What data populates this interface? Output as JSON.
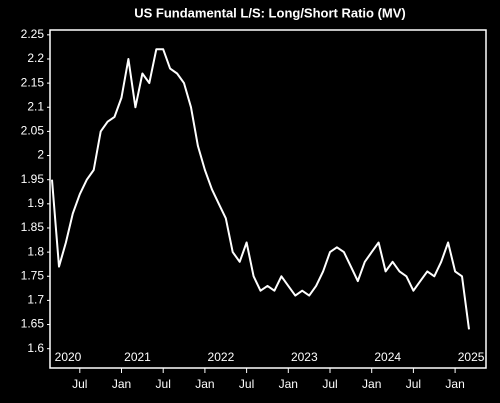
{
  "chart_data": {
    "type": "line",
    "title": "US Fundamental L/S: Long/Short Ratio (MV)",
    "x": [
      "2020-03",
      "2020-04",
      "2020-05",
      "2020-06",
      "2020-07",
      "2020-08",
      "2020-09",
      "2020-10",
      "2020-11",
      "2020-12",
      "2021-01",
      "2021-02",
      "2021-03",
      "2021-04",
      "2021-05",
      "2021-06",
      "2021-07",
      "2021-08",
      "2021-09",
      "2021-10",
      "2021-11",
      "2021-12",
      "2022-01",
      "2022-02",
      "2022-03",
      "2022-04",
      "2022-05",
      "2022-06",
      "2022-07",
      "2022-08",
      "2022-09",
      "2022-10",
      "2022-11",
      "2022-12",
      "2023-01",
      "2023-02",
      "2023-03",
      "2023-04",
      "2023-05",
      "2023-06",
      "2023-07",
      "2023-08",
      "2023-09",
      "2023-10",
      "2023-11",
      "2023-12",
      "2024-01",
      "2024-02",
      "2024-03",
      "2024-04",
      "2024-05",
      "2024-06",
      "2024-07",
      "2024-08",
      "2024-09",
      "2024-10",
      "2024-11",
      "2024-12",
      "2025-01",
      "2025-02",
      "2025-03"
    ],
    "series": [
      {
        "color": "#ffffff",
        "values": [
          1.95,
          1.77,
          1.82,
          1.88,
          1.92,
          1.95,
          1.97,
          2.05,
          2.07,
          2.08,
          2.12,
          2.2,
          2.1,
          2.17,
          2.15,
          2.22,
          2.22,
          2.18,
          2.17,
          2.15,
          2.1,
          2.02,
          1.97,
          1.93,
          1.9,
          1.87,
          1.8,
          1.78,
          1.82,
          1.75,
          1.72,
          1.73,
          1.72,
          1.75,
          1.73,
          1.71,
          1.72,
          1.71,
          1.73,
          1.76,
          1.8,
          1.81,
          1.8,
          1.77,
          1.74,
          1.78,
          1.8,
          1.82,
          1.76,
          1.78,
          1.76,
          1.75,
          1.72,
          1.74,
          1.76,
          1.75,
          1.78,
          1.82,
          1.76,
          1.75,
          1.64
        ]
      }
    ],
    "ylim": [
      1.56,
      2.26
    ],
    "yticks": [
      1.6,
      1.65,
      1.7,
      1.75,
      1.8,
      1.85,
      1.9,
      1.95,
      2,
      2.05,
      2.1,
      2.15,
      2.2,
      2.25
    ],
    "xticks": [
      {
        "value": "2020-07",
        "label": "Jul"
      },
      {
        "value": "2021-01",
        "label": "Jan"
      },
      {
        "value": "2021-07",
        "label": "Jul"
      },
      {
        "value": "2022-01",
        "label": "Jan"
      },
      {
        "value": "2022-07",
        "label": "Jul"
      },
      {
        "value": "2023-01",
        "label": "Jan"
      },
      {
        "value": "2023-07",
        "label": "Jul"
      },
      {
        "value": "2024-01",
        "label": "Jan"
      },
      {
        "value": "2024-07",
        "label": "Jul"
      },
      {
        "value": "2025-01",
        "label": "Jan"
      }
    ],
    "year_labels": [
      {
        "value": "2020-01",
        "label": "2020"
      },
      {
        "value": "2021-01",
        "label": "2021"
      },
      {
        "value": "2022-01",
        "label": "2022"
      },
      {
        "value": "2023-01",
        "label": "2023"
      },
      {
        "value": "2024-01",
        "label": "2024"
      },
      {
        "value": "2025-01",
        "label": "2025"
      }
    ]
  }
}
